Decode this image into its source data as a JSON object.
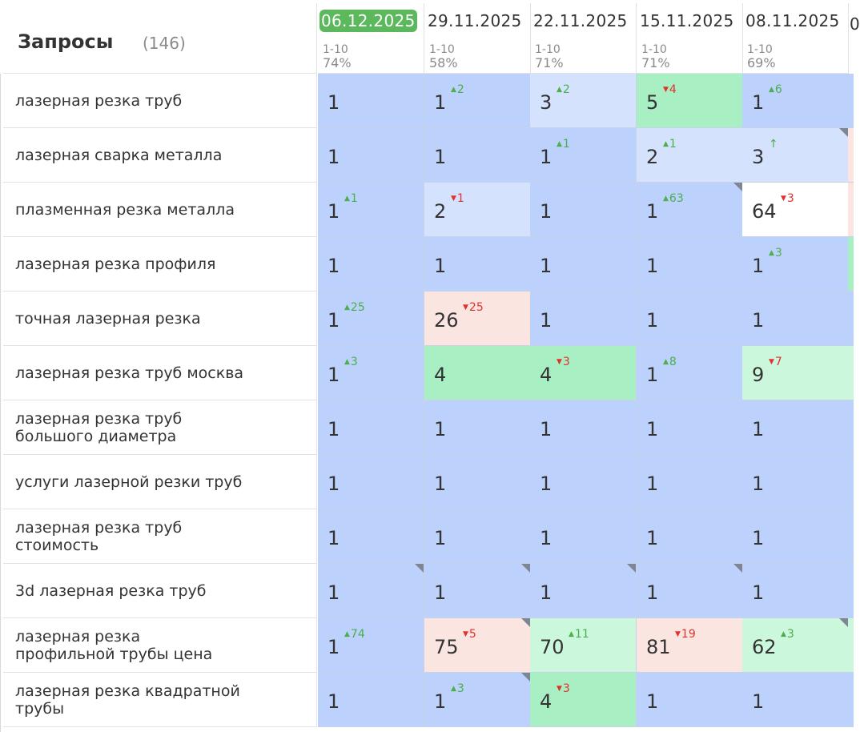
{
  "header": {
    "title": "Запросы",
    "count": "(146)"
  },
  "dates": [
    {
      "date": "06.12.2025",
      "range": "1-10",
      "pct": "74%",
      "active": true
    },
    {
      "date": "29.11.2025",
      "range": "1-10",
      "pct": "58%",
      "active": false
    },
    {
      "date": "22.11.2025",
      "range": "1-10",
      "pct": "71%",
      "active": false
    },
    {
      "date": "15.11.2025",
      "range": "1-10",
      "pct": "71%",
      "active": false
    },
    {
      "date": "08.11.2025",
      "range": "1-10",
      "pct": "69%",
      "active": false
    }
  ],
  "next_column_glyph": "0",
  "colors": {
    "blue": "#bcd1fb",
    "lightblue": "#d5e2fd",
    "green": "#a8efc3",
    "lightgreen": "#cbf7dc",
    "pink": "#fae5e1",
    "white": "#ffffff",
    "up": "#4cae4c",
    "down": "#e0322e",
    "active_date_bg": "#5cb85c"
  },
  "rows": [
    {
      "query": "лазерная резка труб",
      "edge": "blue",
      "cells": [
        {
          "v": "1",
          "bg": "blue"
        },
        {
          "v": "1",
          "bg": "blue",
          "d": "2",
          "dir": "up"
        },
        {
          "v": "3",
          "bg": "lightblue",
          "d": "2",
          "dir": "up"
        },
        {
          "v": "5",
          "bg": "green",
          "d": "4",
          "dir": "down"
        },
        {
          "v": "1",
          "bg": "blue",
          "d": "6",
          "dir": "up"
        }
      ]
    },
    {
      "query": "лазерная сварка металла",
      "edge": "pink",
      "cells": [
        {
          "v": "1",
          "bg": "blue"
        },
        {
          "v": "1",
          "bg": "blue"
        },
        {
          "v": "1",
          "bg": "blue",
          "d": "1",
          "dir": "up"
        },
        {
          "v": "2",
          "bg": "lightblue",
          "d": "1",
          "dir": "up"
        },
        {
          "v": "3",
          "bg": "lightblue",
          "d": "↑",
          "dir": "arrow",
          "corner": true
        }
      ]
    },
    {
      "query": "плазменная резка металла",
      "edge": "pink",
      "cells": [
        {
          "v": "1",
          "bg": "blue",
          "d": "1",
          "dir": "up"
        },
        {
          "v": "2",
          "bg": "lightblue",
          "d": "1",
          "dir": "down"
        },
        {
          "v": "1",
          "bg": "blue"
        },
        {
          "v": "1",
          "bg": "blue",
          "d": "63",
          "dir": "up",
          "corner": true
        },
        {
          "v": "64",
          "bg": "white",
          "d": "3",
          "dir": "down"
        }
      ]
    },
    {
      "query": "лазерная резка профиля",
      "edge": "green",
      "cells": [
        {
          "v": "1",
          "bg": "blue"
        },
        {
          "v": "1",
          "bg": "blue"
        },
        {
          "v": "1",
          "bg": "blue"
        },
        {
          "v": "1",
          "bg": "blue"
        },
        {
          "v": "1",
          "bg": "blue",
          "d": "3",
          "dir": "up"
        }
      ]
    },
    {
      "query": "точная лазерная резка",
      "edge": "blue",
      "cells": [
        {
          "v": "1",
          "bg": "blue",
          "d": "25",
          "dir": "up"
        },
        {
          "v": "26",
          "bg": "pink",
          "d": "25",
          "dir": "down"
        },
        {
          "v": "1",
          "bg": "blue"
        },
        {
          "v": "1",
          "bg": "blue"
        },
        {
          "v": "1",
          "bg": "blue"
        }
      ]
    },
    {
      "query": "лазерная резка труб москва",
      "edge": "lightgreen",
      "cells": [
        {
          "v": "1",
          "bg": "blue",
          "d": "3",
          "dir": "up"
        },
        {
          "v": "4",
          "bg": "green"
        },
        {
          "v": "4",
          "bg": "green",
          "d": "3",
          "dir": "down"
        },
        {
          "v": "1",
          "bg": "blue",
          "d": "8",
          "dir": "up"
        },
        {
          "v": "9",
          "bg": "lightgreen",
          "d": "7",
          "dir": "down"
        }
      ]
    },
    {
      "query": "лазерная резка труб\nбольшого диаметра",
      "edge": "blue",
      "cells": [
        {
          "v": "1",
          "bg": "blue"
        },
        {
          "v": "1",
          "bg": "blue"
        },
        {
          "v": "1",
          "bg": "blue"
        },
        {
          "v": "1",
          "bg": "blue"
        },
        {
          "v": "1",
          "bg": "blue"
        }
      ]
    },
    {
      "query": "услуги лазерной резки труб",
      "edge": "blue",
      "cells": [
        {
          "v": "1",
          "bg": "blue"
        },
        {
          "v": "1",
          "bg": "blue"
        },
        {
          "v": "1",
          "bg": "blue"
        },
        {
          "v": "1",
          "bg": "blue"
        },
        {
          "v": "1",
          "bg": "blue"
        }
      ]
    },
    {
      "query": "лазерная резка труб\nстоимость",
      "edge": "blue",
      "cells": [
        {
          "v": "1",
          "bg": "blue"
        },
        {
          "v": "1",
          "bg": "blue"
        },
        {
          "v": "1",
          "bg": "blue"
        },
        {
          "v": "1",
          "bg": "blue"
        },
        {
          "v": "1",
          "bg": "blue"
        }
      ]
    },
    {
      "query": "3d лазерная резка труб",
      "edge": "blue",
      "cells": [
        {
          "v": "1",
          "bg": "blue",
          "corner": true
        },
        {
          "v": "1",
          "bg": "blue",
          "corner": true
        },
        {
          "v": "1",
          "bg": "blue",
          "corner": true
        },
        {
          "v": "1",
          "bg": "blue",
          "corner": true
        },
        {
          "v": "1",
          "bg": "blue"
        }
      ]
    },
    {
      "query": "лазерная резка\nпрофильной трубы цена",
      "edge": "lightgreen",
      "cells": [
        {
          "v": "1",
          "bg": "blue",
          "d": "74",
          "dir": "up"
        },
        {
          "v": "75",
          "bg": "pink",
          "d": "5",
          "dir": "down",
          "corner": true
        },
        {
          "v": "70",
          "bg": "lightgreen",
          "d": "11",
          "dir": "up"
        },
        {
          "v": "81",
          "bg": "pink",
          "d": "19",
          "dir": "down"
        },
        {
          "v": "62",
          "bg": "lightgreen",
          "d": "3",
          "dir": "up",
          "corner": true
        }
      ]
    },
    {
      "query": "лазерная резка квадратной\nтрубы",
      "edge": "blue",
      "cells": [
        {
          "v": "1",
          "bg": "blue"
        },
        {
          "v": "1",
          "bg": "blue",
          "d": "3",
          "dir": "up",
          "corner": true
        },
        {
          "v": "4",
          "bg": "green",
          "d": "3",
          "dir": "down"
        },
        {
          "v": "1",
          "bg": "blue"
        },
        {
          "v": "1",
          "bg": "blue"
        }
      ]
    }
  ]
}
